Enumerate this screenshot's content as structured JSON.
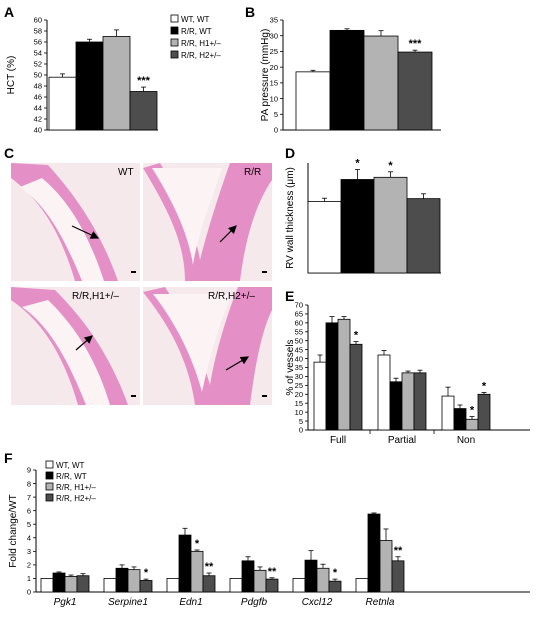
{
  "panels": {
    "A": "A",
    "B": "B",
    "C": "C",
    "D": "D",
    "E": "E",
    "F": "F"
  },
  "legend": {
    "items": [
      {
        "label": "WT, WT",
        "color": "#ffffff"
      },
      {
        "label": "R/R, WT",
        "color": "#000000"
      },
      {
        "label": "R/R, H1+/–",
        "color": "#b3b3b3"
      },
      {
        "label": "R/R, H2+/–",
        "color": "#4d4d4d"
      }
    ]
  },
  "histology": {
    "labels": [
      "WT",
      "R/R",
      "R/R,H1+/–",
      "R/R,H2+/–"
    ]
  },
  "chart_data": [
    {
      "id": "A",
      "type": "bar",
      "ylabel": "HCT (%)",
      "ylim": [
        40,
        60
      ],
      "yticks": [
        40,
        42,
        44,
        46,
        48,
        50,
        52,
        54,
        56,
        58,
        60
      ],
      "categories": [
        ""
      ],
      "series": [
        {
          "name": "WT, WT",
          "values": [
            49.6
          ],
          "err": [
            0.6
          ]
        },
        {
          "name": "R/R, WT",
          "values": [
            56.0
          ],
          "err": [
            0.5
          ]
        },
        {
          "name": "R/R, H1+/–",
          "values": [
            57.0
          ],
          "err": [
            1.2
          ]
        },
        {
          "name": "R/R, H2+/–",
          "values": [
            47.0
          ],
          "err": [
            0.8
          ]
        }
      ],
      "annotations": [
        "",
        "",
        "",
        "***"
      ]
    },
    {
      "id": "B",
      "type": "bar",
      "ylabel": "PA pressure (mmHg)",
      "ylim": [
        0,
        35
      ],
      "yticks": [
        0,
        5,
        10,
        15,
        20,
        25,
        30,
        35
      ],
      "categories": [
        ""
      ],
      "series": [
        {
          "name": "WT, WT",
          "values": [
            18.5
          ],
          "err": [
            0.5
          ]
        },
        {
          "name": "R/R, WT",
          "values": [
            31.7
          ],
          "err": [
            0.5
          ]
        },
        {
          "name": "R/R, H1+/–",
          "values": [
            29.9
          ],
          "err": [
            1.7
          ]
        },
        {
          "name": "R/R, H2+/–",
          "values": [
            24.8
          ],
          "err": [
            0.6
          ]
        }
      ],
      "annotations": [
        "",
        "",
        "",
        "***"
      ]
    },
    {
      "id": "D",
      "type": "bar",
      "ylabel": "RV wall thickness (μm)",
      "ylim": [
        0,
        500
      ],
      "yticks": [],
      "categories": [
        ""
      ],
      "series": [
        {
          "name": "WT, WT",
          "values": [
            325
          ],
          "err": [
            15
          ]
        },
        {
          "name": "R/R, WT",
          "values": [
            425
          ],
          "err": [
            45
          ]
        },
        {
          "name": "R/R, H1+/–",
          "values": [
            435
          ],
          "err": [
            25
          ]
        },
        {
          "name": "R/R, H2+/–",
          "values": [
            338
          ],
          "err": [
            22
          ]
        }
      ],
      "annotations": [
        "",
        "*",
        "*",
        ""
      ]
    },
    {
      "id": "E",
      "type": "bar",
      "ylabel": "% of vessels",
      "ylim": [
        0,
        70
      ],
      "yticks": [
        0,
        5,
        10,
        15,
        20,
        25,
        30,
        35,
        40,
        45,
        50,
        55,
        60,
        65,
        70
      ],
      "categories": [
        "Full",
        "Partial",
        "Non"
      ],
      "series": [
        {
          "name": "WT, WT",
          "values": [
            38,
            42,
            19
          ],
          "err": [
            4,
            2.5,
            5
          ]
        },
        {
          "name": "R/R, WT",
          "values": [
            60,
            27,
            12
          ],
          "err": [
            3.5,
            2,
            2
          ]
        },
        {
          "name": "R/R, H1+/–",
          "values": [
            62,
            32,
            6
          ],
          "err": [
            1.5,
            1,
            1.5
          ]
        },
        {
          "name": "R/R, H2+/–",
          "values": [
            48,
            32,
            20
          ],
          "err": [
            1.5,
            1.5,
            1
          ]
        }
      ],
      "annotations": [
        [
          "",
          "",
          "",
          "*"
        ],
        [
          "",
          "",
          "",
          ""
        ],
        [
          "",
          "",
          "*",
          "*"
        ]
      ]
    },
    {
      "id": "F",
      "type": "bar",
      "ylabel": "Fold change/WT",
      "ylim": [
        0,
        9
      ],
      "yticks": [
        0,
        1,
        2,
        3,
        4,
        5,
        6,
        7,
        8,
        9
      ],
      "categories": [
        "Pgk1",
        "Serpine1",
        "Edn1",
        "Pdgfb",
        "Cxcl12",
        "Retnla"
      ],
      "series": [
        {
          "name": "WT, WT",
          "values": [
            1,
            1,
            1,
            1,
            1,
            1
          ],
          "err": [
            0,
            0,
            0,
            0,
            0,
            0
          ]
        },
        {
          "name": "R/R, WT",
          "values": [
            1.4,
            1.75,
            4.2,
            2.3,
            2.35,
            5.75
          ],
          "err": [
            0.08,
            0.25,
            0.5,
            0.3,
            0.7,
            0.08
          ]
        },
        {
          "name": "R/R, H1+/–",
          "values": [
            1.15,
            1.65,
            3.0,
            1.6,
            1.75,
            3.8
          ],
          "err": [
            0.1,
            0.2,
            0.1,
            0.25,
            0.3,
            0.85
          ]
        },
        {
          "name": "R/R, H2+/–",
          "values": [
            1.2,
            0.85,
            1.2,
            0.95,
            0.8,
            2.3
          ],
          "err": [
            0.15,
            0.1,
            0.2,
            0.1,
            0.15,
            0.3
          ]
        }
      ],
      "annotations": [
        [
          "",
          "",
          "",
          ""
        ],
        [
          "",
          "",
          "",
          "*"
        ],
        [
          "",
          "",
          "*",
          "**"
        ],
        [
          "",
          "",
          "",
          "**"
        ],
        [
          "",
          "",
          "",
          "*"
        ],
        [
          "",
          "",
          "",
          "**"
        ]
      ]
    }
  ]
}
